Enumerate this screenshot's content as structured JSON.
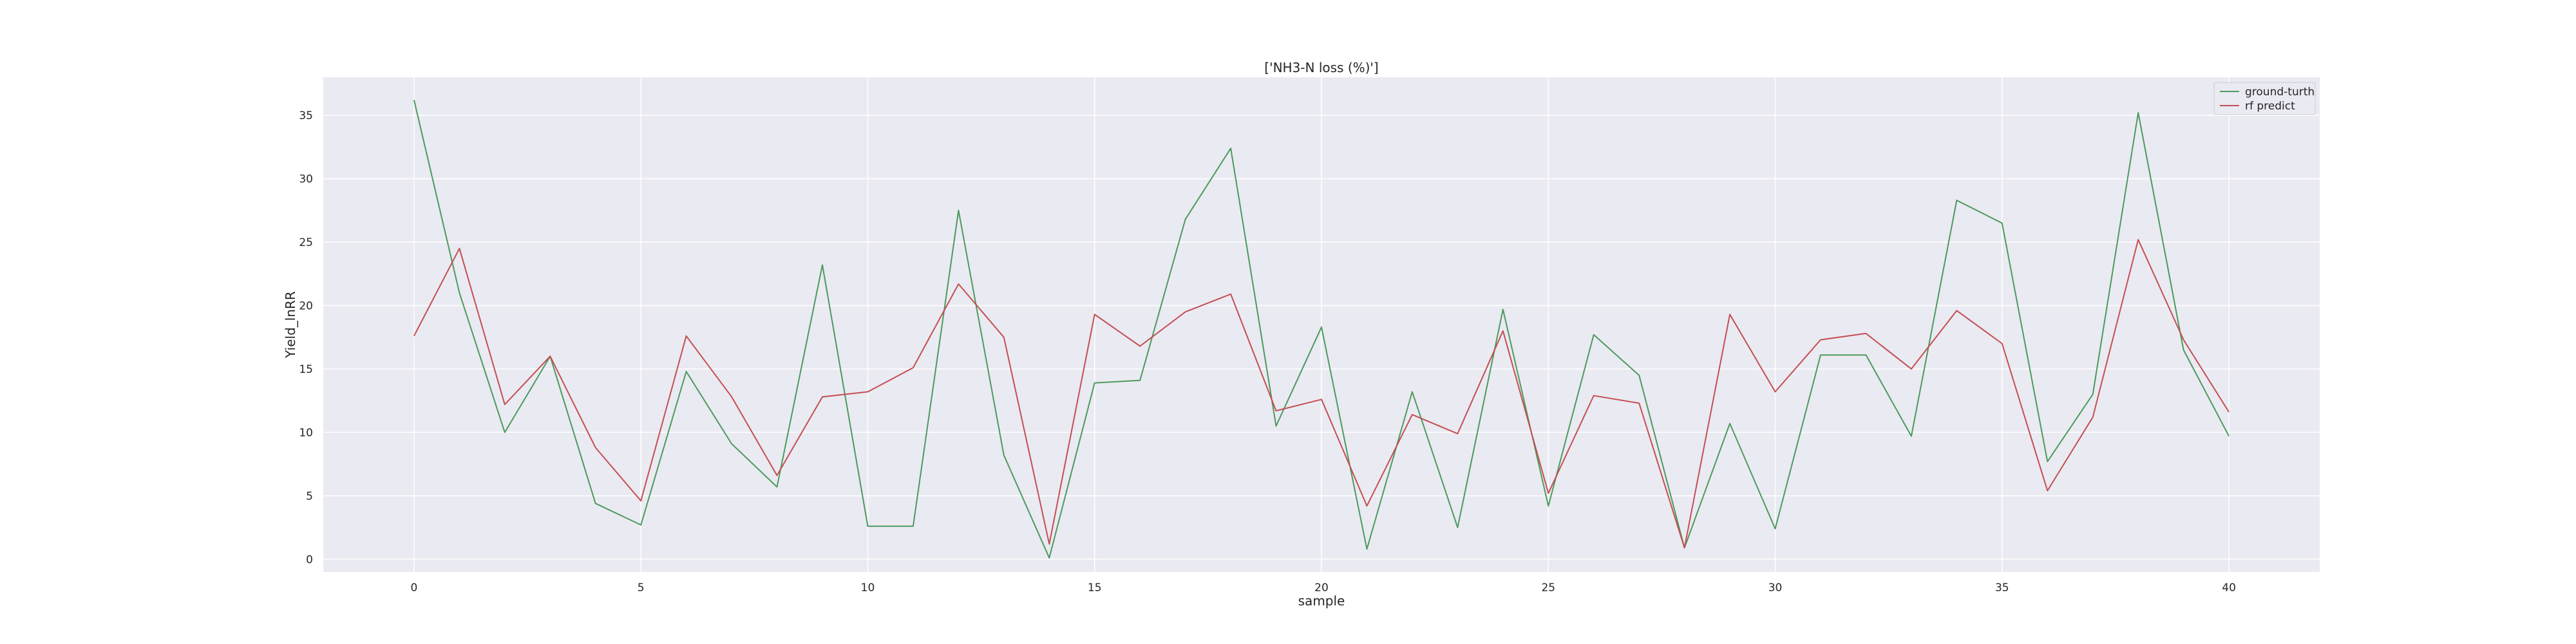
{
  "chart_data": {
    "type": "line",
    "title": "['NH3-N loss (%)']",
    "xlabel": "sample",
    "ylabel": "Yield_lnRR",
    "xlim": [
      -2,
      42
    ],
    "ylim": [
      -1,
      38
    ],
    "xticks": [
      0,
      5,
      10,
      15,
      20,
      25,
      30,
      35,
      40
    ],
    "yticks": [
      0,
      5,
      10,
      15,
      20,
      25,
      30,
      35
    ],
    "grid": true,
    "legend_position": "top-right",
    "x": [
      0,
      1,
      2,
      3,
      4,
      5,
      6,
      7,
      8,
      9,
      10,
      11,
      12,
      13,
      14,
      15,
      16,
      17,
      18,
      19,
      20,
      21,
      22,
      23,
      24,
      25,
      26,
      27,
      28,
      29,
      30,
      31,
      32,
      33,
      34,
      35,
      36,
      37,
      38,
      39,
      40
    ],
    "series": [
      {
        "name": "ground-turth",
        "color": "#4c9a5d",
        "values": [
          36.2,
          21.0,
          10.0,
          16.0,
          4.4,
          2.7,
          14.8,
          9.1,
          5.7,
          23.2,
          2.6,
          2.6,
          27.5,
          8.2,
          0.1,
          13.9,
          14.1,
          26.8,
          32.4,
          10.5,
          18.3,
          0.8,
          13.2,
          2.5,
          19.7,
          4.2,
          17.7,
          14.5,
          0.9,
          10.7,
          2.4,
          16.1,
          16.1,
          9.7,
          28.3,
          26.5,
          7.7,
          13.0,
          35.2,
          16.5,
          9.7
        ]
      },
      {
        "name": "rf predict",
        "color": "#c44e52",
        "values": [
          17.6,
          24.5,
          12.2,
          16.0,
          8.8,
          4.6,
          17.6,
          12.8,
          6.6,
          12.8,
          13.2,
          15.1,
          21.7,
          17.5,
          1.2,
          19.3,
          16.8,
          19.5,
          20.9,
          11.7,
          12.6,
          4.2,
          11.4,
          9.9,
          18.0,
          5.2,
          12.9,
          12.3,
          0.9,
          19.3,
          13.2,
          17.3,
          17.8,
          15.0,
          19.6,
          17.0,
          5.4,
          11.2,
          25.2,
          17.3,
          11.6
        ]
      }
    ]
  }
}
